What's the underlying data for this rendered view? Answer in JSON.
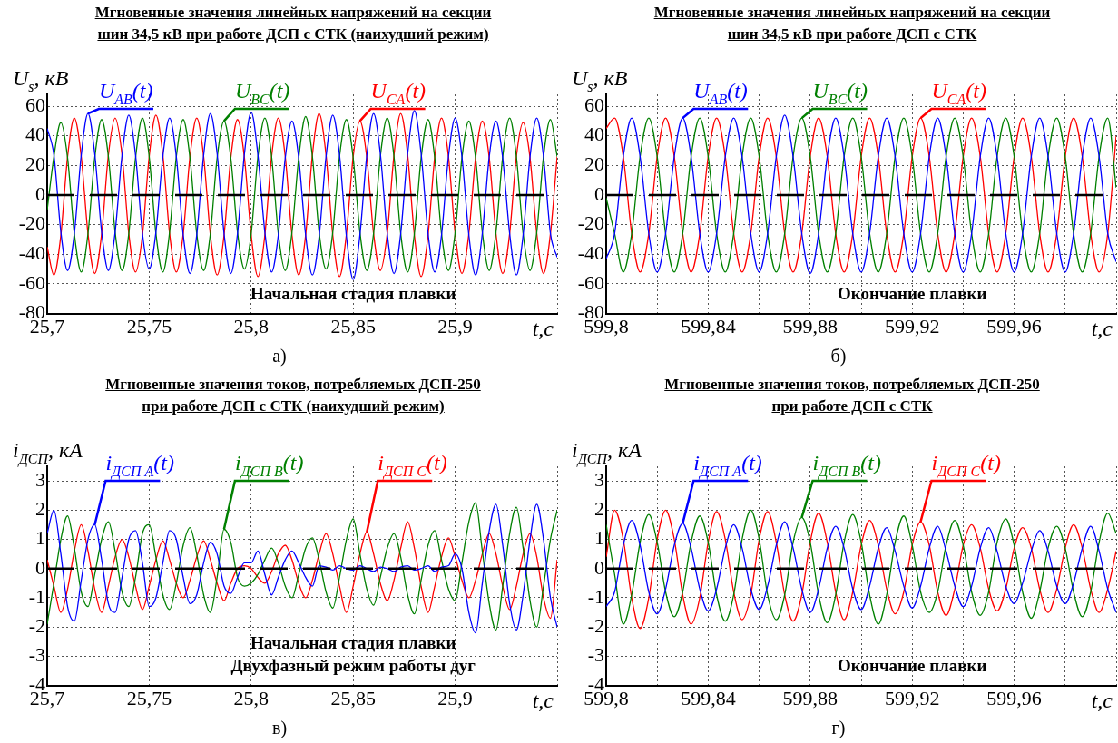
{
  "chart_data": [
    {
      "type": "line",
      "title": "Мгновенные значения линейных напряжений на секции\nшин 34,5 кВ при работе ДСП с СТК (наихудший режим)",
      "xlabel": "t,c",
      "ylabel": "U$_{s}$, кВ",
      "grid": true,
      "xlim": [
        25.7,
        25.95
      ],
      "ylim": [
        -80,
        68
      ],
      "xticks": [
        {
          "value": 25.7,
          "label": "25,7"
        },
        {
          "value": 25.75,
          "label": "25,75"
        },
        {
          "value": 25.8,
          "label": "25,8"
        },
        {
          "value": 25.85,
          "label": "25,85"
        },
        {
          "value": 25.9,
          "label": "25,9"
        },
        {
          "value": 25.95,
          "label": null
        }
      ],
      "yticks": [
        -80,
        -60,
        -40,
        -20,
        0,
        20,
        40,
        60
      ],
      "ref_lines": [
        {
          "axis": "y",
          "value": 0,
          "color": "#000000",
          "line_style": "dashed"
        }
      ],
      "annotations": [
        "Начальная стадия плавки",
        "а)"
      ],
      "x": [
        25.7,
        25.7033,
        25.7067,
        25.71,
        25.7133,
        25.7167,
        25.72,
        25.7233,
        25.7267,
        25.73,
        25.7333,
        25.7367,
        25.74,
        25.7433,
        25.7467,
        25.75,
        25.7533,
        25.7567,
        25.76,
        25.7633,
        25.7667,
        25.77,
        25.7733,
        25.7767,
        25.78,
        25.7833,
        25.7867,
        25.79,
        25.7933,
        25.7967,
        25.8,
        25.8033,
        25.8067,
        25.81,
        25.8133,
        25.8167,
        25.82,
        25.8233,
        25.8267,
        25.83,
        25.8333,
        25.8367,
        25.84,
        25.8433,
        25.8467,
        25.85,
        25.8533,
        25.8567,
        25.86,
        25.8633,
        25.8667,
        25.87,
        25.8733,
        25.8767,
        25.88,
        25.8833,
        25.8867,
        25.89,
        25.8933,
        25.8967,
        25.9,
        25.9033,
        25.9067,
        25.91,
        25.9133,
        25.9167,
        25.92,
        25.9233,
        25.9267,
        25.93,
        25.9333,
        25.9367,
        25.94,
        25.9433,
        25.9467,
        25.95
      ],
      "series": [
        {
          "name": "U$_{AB}$(t)",
          "color": "#0000ff",
          "values": [
            45,
            27,
            -25,
            -51,
            -26,
            27,
            55,
            28,
            -25,
            -51,
            -25,
            27,
            54,
            27,
            -26,
            -50,
            -25,
            26,
            52,
            26,
            -27,
            -53,
            -27,
            27,
            55,
            28,
            -26,
            -53,
            -26,
            28,
            56,
            27,
            -25,
            -52,
            -27,
            25,
            50,
            25,
            -27,
            -54,
            -28,
            26,
            54,
            27,
            -28,
            -57,
            -27,
            27,
            55,
            28,
            -26,
            -53,
            -26,
            28,
            57,
            28,
            -26,
            -52,
            -27,
            26,
            52,
            26,
            -27,
            -54,
            -26,
            26,
            50,
            25,
            -26,
            -54,
            -27,
            26,
            52,
            26,
            -26,
            -42
          ]
        },
        {
          "name": "U$_{BC}$(t)",
          "color": "#008000",
          "values": [
            -10,
            26,
            49,
            25,
            -26,
            -52,
            -26,
            25,
            51,
            26,
            -25,
            -51,
            -26,
            25,
            52,
            26,
            -26,
            -52,
            -25,
            26,
            51,
            25,
            -26,
            -51,
            -26,
            25,
            50,
            25,
            -25,
            -50,
            -26,
            26,
            52,
            26,
            -26,
            -51,
            -25,
            25,
            53,
            26,
            -25,
            -50,
            -25,
            26,
            51,
            25,
            -25,
            -51,
            -26,
            26,
            52,
            26,
            -26,
            -52,
            -26,
            25,
            51,
            25,
            -26,
            -51,
            -25,
            25,
            50,
            25,
            -25,
            -51,
            -25,
            26,
            52,
            26,
            -26,
            -51,
            -25,
            26,
            51,
            26
          ]
        },
        {
          "name": "U$_{CA}$(t)",
          "color": "#ff0000",
          "values": [
            -35,
            -54,
            -27,
            26,
            52,
            26,
            -26,
            -53,
            -26,
            27,
            52,
            27,
            -26,
            -52,
            -27,
            26,
            54,
            27,
            -26,
            -52,
            -26,
            26,
            52,
            26,
            -27,
            -54,
            -27,
            25,
            51,
            25,
            -27,
            -55,
            -27,
            26,
            52,
            26,
            -27,
            -54,
            -27,
            27,
            55,
            27,
            -27,
            -55,
            -26,
            26,
            50,
            25,
            -26,
            -51,
            -26,
            27,
            55,
            27,
            -27,
            -55,
            -27,
            26,
            52,
            26,
            -26,
            -53,
            -26,
            25,
            50,
            25,
            -26,
            -53,
            -26,
            26,
            49,
            25,
            -26,
            -53,
            -26,
            26
          ]
        }
      ]
    },
    {
      "type": "line",
      "title": "Мгновенные значения линейных напряжений на секции\nшин 34,5 кВ при работе ДСП с СТК",
      "xlabel": "t,c",
      "ylabel": "U$_{s}$, кВ",
      "grid": true,
      "xlim": [
        599.8,
        600
      ],
      "ylim": [
        -80,
        68
      ],
      "xticks": [
        {
          "value": 599.8,
          "label": "599,8"
        },
        {
          "value": 599.82,
          "label": null
        },
        {
          "value": 599.84,
          "label": "599,84"
        },
        {
          "value": 599.86,
          "label": null
        },
        {
          "value": 599.88,
          "label": "599,88"
        },
        {
          "value": 599.9,
          "label": null
        },
        {
          "value": 599.92,
          "label": "599,92"
        },
        {
          "value": 599.94,
          "label": null
        },
        {
          "value": 599.96,
          "label": "599,96"
        },
        {
          "value": 599.98,
          "label": null
        },
        {
          "value": 600,
          "label": null
        }
      ],
      "yticks": [
        -80,
        -60,
        -40,
        -20,
        0,
        20,
        40,
        60
      ],
      "ref_lines": [
        {
          "axis": "y",
          "value": 0,
          "color": "#000000",
          "line_style": "dashed"
        }
      ],
      "annotations": [
        "Окончание плавки",
        "б)"
      ],
      "x": [
        599.8,
        599.8033,
        599.8067,
        599.81,
        599.8133,
        599.8167,
        599.82,
        599.8233,
        599.8267,
        599.83,
        599.8333,
        599.8367,
        599.84,
        599.8433,
        599.8467,
        599.85,
        599.8533,
        599.8567,
        599.86,
        599.8633,
        599.8667,
        599.87,
        599.8733,
        599.8767,
        599.88,
        599.8833,
        599.8867,
        599.89,
        599.8933,
        599.8967,
        599.9,
        599.9033,
        599.9067,
        599.91,
        599.9133,
        599.9167,
        599.92,
        599.9233,
        599.9267,
        599.93,
        599.9333,
        599.9367,
        599.94,
        599.9433,
        599.9467,
        599.95,
        599.9533,
        599.9567,
        599.96,
        599.9633,
        599.9667,
        599.97,
        599.9733,
        599.9767,
        599.98,
        599.9833,
        599.9867,
        599.99,
        599.9933,
        599.9967,
        600
      ],
      "series": [
        {
          "name": "U$_{AB}$(t)",
          "color": "#0000ff",
          "values": [
            -43,
            -26,
            26,
            52,
            26,
            -26,
            -52,
            -26,
            26,
            52,
            26,
            -26,
            -52,
            -26,
            26,
            52,
            26,
            -26,
            -52,
            -26,
            26,
            54,
            26,
            -26,
            -53,
            -26,
            26,
            52,
            26,
            -26,
            -52,
            -26,
            26,
            52,
            26,
            -26,
            -52,
            -26,
            26,
            52,
            26,
            -26,
            -52,
            -26,
            26,
            52,
            26,
            -26,
            -52,
            -26,
            26,
            52,
            26,
            -26,
            -52,
            -26,
            26,
            52,
            26,
            -26,
            -45
          ]
        },
        {
          "name": "U$_{BC}$(t)",
          "color": "#008000",
          "values": [
            -2,
            -26,
            -52,
            -26,
            26,
            52,
            26,
            -26,
            -52,
            -26,
            26,
            52,
            26,
            -26,
            -52,
            -26,
            26,
            52,
            26,
            -26,
            -52,
            -26,
            26,
            52,
            26,
            -26,
            -52,
            -26,
            26,
            52,
            26,
            -26,
            -52,
            -26,
            26,
            52,
            26,
            -26,
            -52,
            -26,
            26,
            52,
            26,
            -26,
            -52,
            -26,
            26,
            52,
            26,
            -26,
            -52,
            -26,
            26,
            52,
            26,
            -26,
            -52,
            -26,
            26,
            52,
            5
          ]
        },
        {
          "name": "U$_{CA}$(t)",
          "color": "#ff0000",
          "values": [
            45,
            52,
            26,
            -26,
            -52,
            -26,
            26,
            52,
            26,
            -26,
            -52,
            -26,
            26,
            52,
            26,
            -26,
            -52,
            -26,
            26,
            52,
            26,
            -26,
            -52,
            -26,
            26,
            52,
            26,
            -26,
            -52,
            -26,
            26,
            52,
            26,
            -26,
            -52,
            -26,
            26,
            52,
            26,
            -26,
            -52,
            -26,
            26,
            52,
            26,
            -26,
            -52,
            -26,
            26,
            52,
            26,
            -26,
            -52,
            -26,
            26,
            52,
            26,
            -26,
            -52,
            -26,
            40
          ]
        }
      ]
    },
    {
      "type": "line",
      "title": "Мгновенные значения токов, потребляемых ДСП-250\nпри работе ДСП с СТК (наихудший режим)",
      "xlabel": "t,c",
      "ylabel": "i$_{ДСП}$, кА",
      "grid": true,
      "xlim": [
        25.7,
        25.95
      ],
      "ylim": [
        -4,
        3.5
      ],
      "xticks": [
        {
          "value": 25.7,
          "label": "25,7"
        },
        {
          "value": 25.75,
          "label": "25,75"
        },
        {
          "value": 25.8,
          "label": "25,8"
        },
        {
          "value": 25.85,
          "label": "25,85"
        },
        {
          "value": 25.9,
          "label": "25,9"
        },
        {
          "value": 25.95,
          "label": null
        }
      ],
      "yticks": [
        -4,
        -3,
        -2,
        -1,
        0,
        1,
        2,
        3
      ],
      "ref_lines": [
        {
          "axis": "y",
          "value": 0,
          "color": "#000000",
          "line_style": "dashed"
        }
      ],
      "annotations": [
        "Начальная стадия плавки",
        "Двухфазный режим работы дуг",
        "в)"
      ],
      "x": [
        25.7,
        25.7033,
        25.7067,
        25.71,
        25.7133,
        25.7167,
        25.72,
        25.7233,
        25.7267,
        25.73,
        25.7333,
        25.7367,
        25.74,
        25.7433,
        25.7467,
        25.75,
        25.7533,
        25.7567,
        25.76,
        25.7633,
        25.7667,
        25.77,
        25.7733,
        25.7767,
        25.78,
        25.7833,
        25.7867,
        25.79,
        25.7933,
        25.7967,
        25.8,
        25.8033,
        25.8067,
        25.81,
        25.8133,
        25.8167,
        25.82,
        25.8233,
        25.8267,
        25.83,
        25.8333,
        25.8367,
        25.84,
        25.8433,
        25.8467,
        25.85,
        25.8533,
        25.8567,
        25.86,
        25.8633,
        25.8667,
        25.87,
        25.8733,
        25.8767,
        25.88,
        25.8833,
        25.8867,
        25.89,
        25.8933,
        25.8967,
        25.9,
        25.9033,
        25.9067,
        25.91,
        25.9133,
        25.9167,
        25.92,
        25.9233,
        25.9267,
        25.93,
        25.9333,
        25.9367,
        25.94,
        25.9433,
        25.9467,
        25.95
      ],
      "series": [
        {
          "name": "i$_{ДСП A}$(t)",
          "color": "#0000ff",
          "values": [
            1.2,
            2.0,
            0.5,
            -1.3,
            -1.8,
            -0.4,
            1.0,
            1.5,
            0.3,
            -1.2,
            -1.5,
            -0.3,
            1.0,
            1.3,
            0.2,
            -1.3,
            -1.0,
            0.2,
            1.3,
            1.0,
            -0.3,
            -1.2,
            -0.9,
            0.2,
            0.9,
            0.5,
            -0.6,
            -0.85,
            -0.3,
            0.2,
            0.2,
            0.6,
            -0.2,
            -0.9,
            -0.3,
            0.3,
            0.6,
            0.2,
            -0.3,
            -0.6,
            0.1,
            0.05,
            -0.05,
            0.1,
            0,
            -0.05,
            0.1,
            0,
            -0.1,
            0.05,
            0,
            -0.1,
            0.05,
            0.1,
            -0.05,
            0,
            0.1,
            -0.1,
            0.05,
            0.1,
            0.5,
            0,
            -1.5,
            -2.2,
            -0.5,
            1.3,
            2.2,
            0.8,
            -1.2,
            -2.1,
            -0.9,
            1.0,
            2.2,
            1.0,
            -1.0,
            -2.0
          ]
        },
        {
          "name": "i$_{ДСП B}$(t)",
          "color": "#008000",
          "values": [
            -1.9,
            -0.5,
            1.0,
            1.8,
            0.7,
            -0.8,
            -1.3,
            -0.2,
            1.0,
            1.6,
            0.6,
            -0.8,
            -1.3,
            -0.3,
            1.2,
            1.5,
            0.4,
            -0.9,
            -1.4,
            -0.5,
            0.8,
            1.4,
            0.5,
            -0.9,
            -1.5,
            -0.3,
            1.35,
            0.9,
            -0.3,
            -0.6,
            -0.5,
            -0.2,
            0.3,
            0.7,
            0.2,
            -0.6,
            -1.0,
            -0.2,
            0.7,
            1.05,
            0.3,
            -0.8,
            -1.35,
            -0.3,
            1.0,
            1.7,
            0.5,
            -0.7,
            -1.25,
            -0.3,
            0.7,
            1.2,
            0.4,
            -0.9,
            -1.55,
            -0.4,
            0.8,
            1.3,
            0.3,
            -0.7,
            -1.1,
            0.2,
            1.6,
            2.25,
            0.6,
            -1.2,
            -2.1,
            -0.6,
            1.2,
            2.1,
            0.7,
            -1.1,
            -2.0,
            -0.6,
            1.0,
            2.0
          ]
        },
        {
          "name": "i$_{ДСП C}$(t)",
          "color": "#ff0000",
          "values": [
            0.3,
            -0.6,
            -1.5,
            -0.7,
            0.6,
            1.5,
            0.6,
            -0.7,
            -1.5,
            -0.6,
            0.4,
            1.0,
            0.4,
            -0.6,
            -1.4,
            -0.6,
            0.3,
            0.95,
            0.3,
            -0.5,
            -1.0,
            -0.4,
            0.4,
            0.95,
            0.3,
            -0.5,
            -1.1,
            -0.5,
            0,
            0.1,
            0,
            -0.3,
            -0.5,
            -0.1,
            0.5,
            0.8,
            0.3,
            -0.5,
            -1.0,
            -0.4,
            0.5,
            1.2,
            0.5,
            -0.6,
            -1.5,
            -0.6,
            0.5,
            1.25,
            0.5,
            -0.5,
            -1.1,
            -0.4,
            0.7,
            1.6,
            0.7,
            -0.6,
            -1.5,
            -0.6,
            0.4,
            1.05,
            0.4,
            -0.4,
            -1.0,
            -0.4,
            0.5,
            1.2,
            0.5,
            -0.6,
            -1.4,
            -0.6,
            0.5,
            1.2,
            0.4,
            -1.0,
            -1.7,
            0.3
          ]
        }
      ]
    },
    {
      "type": "line",
      "title": "Мгновенные значения токов, потребляемых ДСП-250\nпри работе ДСП с СТК",
      "xlabel": "t,c",
      "ylabel": "i$_{ДСП}$, кА",
      "grid": true,
      "xlim": [
        599.8,
        600
      ],
      "ylim": [
        -4,
        3.5
      ],
      "xticks": [
        {
          "value": 599.8,
          "label": "599,8"
        },
        {
          "value": 599.82,
          "label": null
        },
        {
          "value": 599.84,
          "label": "599,84"
        },
        {
          "value": 599.86,
          "label": null
        },
        {
          "value": 599.88,
          "label": "599,88"
        },
        {
          "value": 599.9,
          "label": null
        },
        {
          "value": 599.92,
          "label": "599,92"
        },
        {
          "value": 599.94,
          "label": null
        },
        {
          "value": 599.96,
          "label": "599,96"
        },
        {
          "value": 599.98,
          "label": null
        },
        {
          "value": 600,
          "label": null
        }
      ],
      "yticks": [
        -4,
        -3,
        -2,
        -1,
        0,
        1,
        2,
        3
      ],
      "ref_lines": [
        {
          "axis": "y",
          "value": 0,
          "color": "#000000",
          "line_style": "dashed"
        }
      ],
      "annotations": [
        "Окончание плавки",
        "г)"
      ],
      "x": [
        599.8,
        599.8033,
        599.8067,
        599.81,
        599.8133,
        599.8167,
        599.82,
        599.8233,
        599.8267,
        599.83,
        599.8333,
        599.8367,
        599.84,
        599.8433,
        599.8467,
        599.85,
        599.8533,
        599.8567,
        599.86,
        599.8633,
        599.8667,
        599.87,
        599.8733,
        599.8767,
        599.88,
        599.8833,
        599.8867,
        599.89,
        599.8933,
        599.8967,
        599.9,
        599.9033,
        599.9067,
        599.91,
        599.9133,
        599.9167,
        599.92,
        599.9233,
        599.9267,
        599.93,
        599.9333,
        599.9367,
        599.94,
        599.9433,
        599.9467,
        599.95,
        599.9533,
        599.9567,
        599.96,
        599.9633,
        599.9667,
        599.97,
        599.9733,
        599.9767,
        599.98,
        599.9833,
        599.9867,
        599.99,
        599.9933,
        599.9967,
        600
      ],
      "series": [
        {
          "name": "i$_{ДСП A}$(t)",
          "color": "#0000ff",
          "values": [
            -1.3,
            -0.8,
            0.8,
            1.65,
            0.8,
            -0.8,
            -1.55,
            -0.7,
            0.8,
            1.55,
            0.7,
            -0.7,
            -1.45,
            -0.7,
            0.7,
            1.5,
            0.7,
            -0.7,
            -1.4,
            -0.6,
            0.8,
            1.6,
            0.7,
            -0.7,
            -1.5,
            -0.7,
            0.7,
            1.45,
            0.7,
            -0.7,
            -1.4,
            -0.6,
            0.7,
            1.4,
            0.6,
            -0.6,
            -1.35,
            -0.6,
            0.7,
            1.45,
            0.6,
            -0.6,
            -1.3,
            -0.6,
            0.7,
            1.4,
            0.6,
            -0.6,
            -1.2,
            -0.5,
            0.6,
            1.3,
            0.6,
            -0.6,
            -1.2,
            -0.5,
            0.7,
            1.45,
            0.6,
            -0.7,
            -1.5
          ]
        },
        {
          "name": "i$_{ДСП B}$(t)",
          "color": "#008000",
          "values": [
            1.5,
            -0.2,
            -1.9,
            -0.9,
            0.9,
            1.85,
            0.9,
            -0.8,
            -1.65,
            -0.8,
            0.9,
            1.8,
            0.9,
            -0.9,
            -1.8,
            -0.9,
            1.0,
            2.0,
            1.0,
            -0.9,
            -1.75,
            -0.9,
            0.9,
            1.75,
            0.9,
            -0.9,
            -1.85,
            -0.9,
            0.9,
            1.85,
            0.9,
            -0.9,
            -1.9,
            -0.9,
            0.9,
            1.8,
            0.8,
            -0.8,
            -1.5,
            -0.8,
            0.8,
            1.65,
            0.8,
            -0.8,
            -1.6,
            -0.8,
            0.9,
            1.7,
            0.8,
            -0.8,
            -1.7,
            -0.8,
            0.7,
            1.45,
            0.7,
            -0.8,
            -1.65,
            -0.8,
            0.9,
            1.9,
            1.2
          ]
        },
        {
          "name": "i$_{ДСП C}$(t)",
          "color": "#ff0000",
          "values": [
            0.4,
            2.0,
            1.0,
            -1.0,
            -2.05,
            -1.0,
            1.0,
            2.0,
            1.0,
            -0.9,
            -1.9,
            -1.0,
            0.9,
            1.95,
            1.0,
            -0.8,
            -1.75,
            -0.9,
            1.0,
            1.95,
            0.9,
            -0.9,
            -1.8,
            -0.9,
            0.9,
            1.9,
            0.9,
            -0.8,
            -1.75,
            -0.8,
            0.8,
            1.65,
            0.8,
            -0.7,
            -1.55,
            -0.8,
            0.8,
            1.6,
            0.8,
            -0.8,
            -1.6,
            -0.7,
            0.8,
            1.5,
            0.7,
            -0.7,
            -1.45,
            -0.7,
            0.7,
            1.4,
            0.7,
            -0.7,
            -1.5,
            -0.7,
            0.7,
            1.5,
            0.7,
            -0.7,
            -1.5,
            -0.7,
            0.6
          ]
        }
      ]
    }
  ]
}
